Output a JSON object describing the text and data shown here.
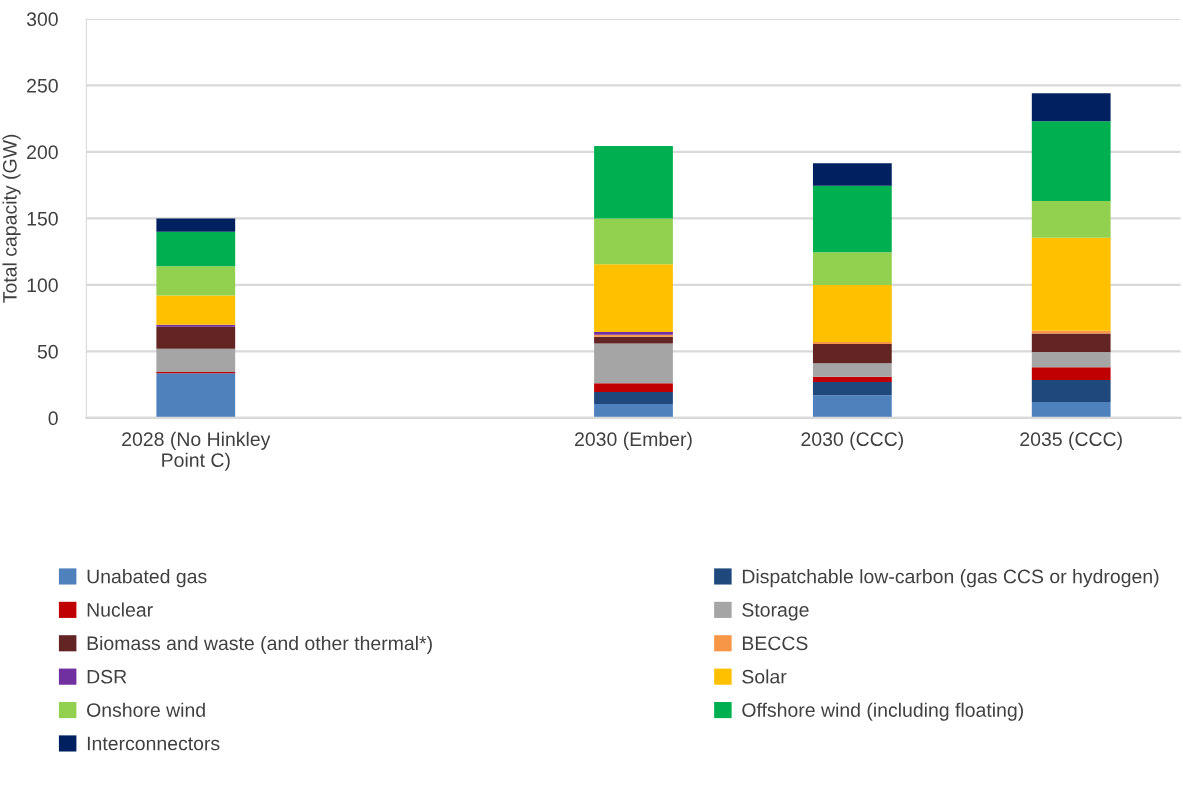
{
  "chart_data": {
    "type": "bar",
    "stacked": true,
    "ylabel": "Total capacity (GW)",
    "categories": [
      "2028 (No Hinkley\nPoint C)",
      null,
      "2030 (Ember)",
      "2030 (CCC)",
      "2035 (CCC)"
    ],
    "series": [
      {
        "name": "Unabated gas",
        "color": "#4f81bd",
        "values": [
          33.5,
          null,
          10.5,
          17,
          12
        ]
      },
      {
        "name": "Dispatchable low-carbon (gas CCS or hydrogen)",
        "color": "#1f497d",
        "values": [
          0,
          null,
          9,
          10,
          16.5
        ]
      },
      {
        "name": "Nuclear",
        "color": "#c00000",
        "values": [
          1,
          null,
          6.5,
          4,
          9.5
        ]
      },
      {
        "name": "Storage",
        "color": "#a5a5a5",
        "values": [
          17.5,
          null,
          30,
          10,
          11.5
        ]
      },
      {
        "name": "Biomass and waste (and other thermal*)",
        "color": "#632523",
        "values": [
          16.5,
          null,
          5,
          14.5,
          14
        ]
      },
      {
        "name": "BECCS",
        "color": "#f79646",
        "values": [
          0,
          null,
          1.5,
          1.5,
          2
        ]
      },
      {
        "name": "DSR",
        "color": "#7030a0",
        "values": [
          1.5,
          null,
          2,
          0,
          0
        ]
      },
      {
        "name": "Solar",
        "color": "#ffc000",
        "values": [
          22,
          null,
          51,
          43,
          70
        ]
      },
      {
        "name": "Onshore wind",
        "color": "#92d050",
        "values": [
          22,
          null,
          34.5,
          24.5,
          27.5
        ]
      },
      {
        "name": "Offshore wind (including floating)",
        "color": "#00b050",
        "values": [
          26,
          null,
          54.5,
          50,
          60
        ]
      },
      {
        "name": "Interconnectors",
        "color": "#002060",
        "values": [
          10,
          null,
          0,
          17,
          21
        ]
      }
    ],
    "ylim": [
      0,
      300
    ],
    "yticks": [
      0,
      50,
      100,
      150,
      200,
      250,
      300
    ],
    "grid": "y",
    "legend": "bottom"
  }
}
